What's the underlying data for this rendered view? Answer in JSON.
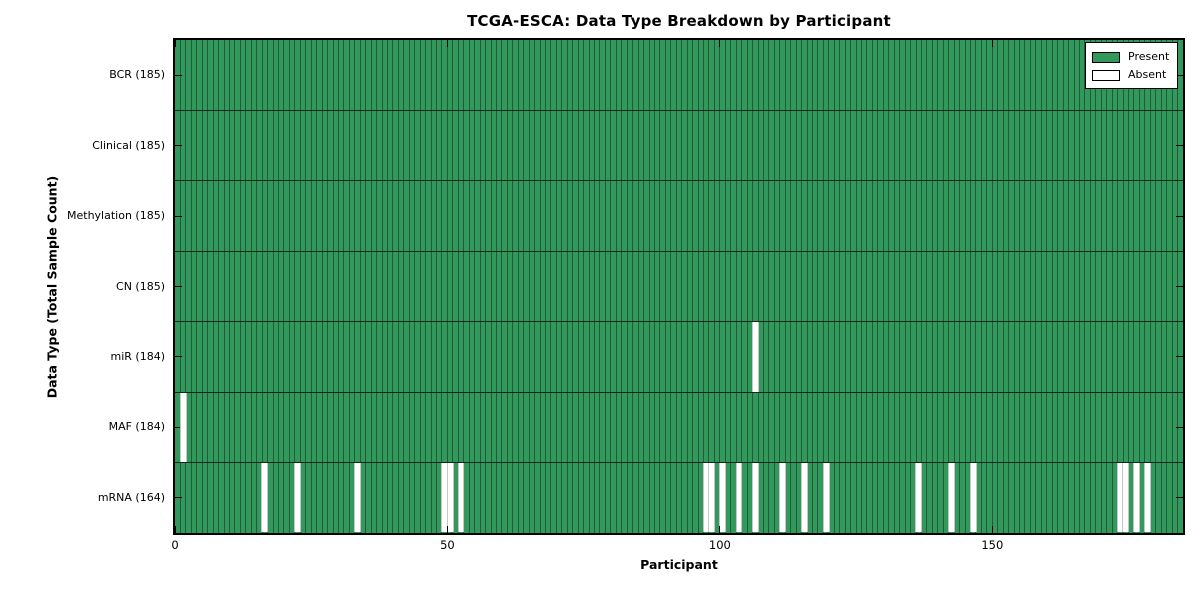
{
  "chart_data": {
    "type": "heatmap",
    "title": "TCGA-ESCA: Data Type Breakdown by Participant",
    "xlabel": "Participant",
    "ylabel": "Data Type (Total Sample Count)",
    "x_range": [
      0,
      185
    ],
    "x_ticks": [
      "0",
      "50",
      "100",
      "150"
    ],
    "x_tick_values": [
      0,
      50,
      100,
      150
    ],
    "grid": false,
    "legend": {
      "position": "upper right",
      "entries": [
        {
          "label": "Present",
          "color": "#33985b"
        },
        {
          "label": "Absent",
          "color": "#ffffff"
        }
      ]
    },
    "colors": {
      "present_fill": "#33985b",
      "bar_edge": "#1e5b38",
      "row_divider": "#0c2918",
      "absent_fill": "#ffffff",
      "axis": "#000000"
    },
    "rows": [
      {
        "label": "BCR (185)",
        "name": "BCR",
        "total_samples": 185,
        "absent_participants": []
      },
      {
        "label": "Clinical (185)",
        "name": "Clinical",
        "total_samples": 185,
        "absent_participants": []
      },
      {
        "label": "Methylation (185)",
        "name": "Methylation",
        "total_samples": 185,
        "absent_participants": []
      },
      {
        "label": "CN (185)",
        "name": "CN",
        "total_samples": 185,
        "absent_participants": []
      },
      {
        "label": "miR (184)",
        "name": "miR",
        "total_samples": 184,
        "absent_participants": [
          106
        ]
      },
      {
        "label": "MAF (184)",
        "name": "MAF",
        "total_samples": 184,
        "absent_participants": [
          1
        ]
      },
      {
        "label": "mRNA (164)",
        "name": "mRNA",
        "total_samples": 164,
        "absent_participants": [
          16,
          22,
          33,
          49,
          50,
          52,
          97,
          98,
          100,
          103,
          106,
          111,
          115,
          119,
          136,
          142,
          146,
          173,
          174,
          176,
          178
        ]
      }
    ]
  }
}
